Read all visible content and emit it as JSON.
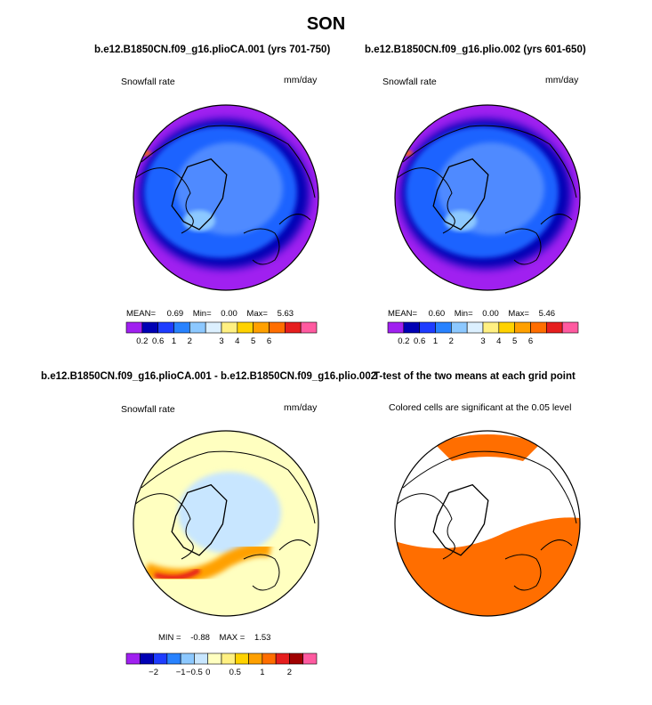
{
  "season": "SON",
  "colors": {
    "outline": "#000000",
    "coast": "#000000",
    "sig": "#ff6e00",
    "bg_low": "#a020f0",
    "ocean_dark": "#0000b4",
    "ocean_mid": "#1e64ff",
    "land": "#4f8aff",
    "snow_light": "#8cc8ff",
    "diff_pale": "#ffffc0",
    "diff_blue": "#c8e6ff"
  },
  "chart_data": [
    {
      "type": "heatmap",
      "projection": "north-polar-stereographic",
      "title": "b.e12.B1850CN.f09_g16.plioCA.001 (yrs 701-750)",
      "variable": "Snowfall rate",
      "units": "mm/day",
      "stats": {
        "mean_label": "MEAN=",
        "mean": "0.69",
        "min_label": "Min=",
        "min": "0.00",
        "max_label": "Max=",
        "max": "5.63"
      },
      "colorbar": {
        "colors": [
          "#a020f0",
          "#0000b4",
          "#1e3cff",
          "#2882ff",
          "#8cc8ff",
          "#dcf0ff",
          "#fff082",
          "#ffd200",
          "#ffa000",
          "#ff6e00",
          "#e61e1e",
          "#ff5aa0"
        ],
        "tick_labels": [
          "0.2",
          "0.6",
          "1",
          "2",
          "3",
          "4",
          "5",
          "6"
        ],
        "tick_boundaries": [
          1,
          2,
          3,
          4,
          6,
          7,
          8,
          9
        ]
      }
    },
    {
      "type": "heatmap",
      "projection": "north-polar-stereographic",
      "title": "b.e12.B1850CN.f09_g16.plio.002 (yrs 601-650)",
      "variable": "Snowfall rate",
      "units": "mm/day",
      "stats": {
        "mean_label": "MEAN=",
        "mean": "0.60",
        "min_label": "Min=",
        "min": "0.00",
        "max_label": "Max=",
        "max": "5.46"
      },
      "colorbar": {
        "colors": [
          "#a020f0",
          "#0000b4",
          "#1e3cff",
          "#2882ff",
          "#8cc8ff",
          "#dcf0ff",
          "#fff082",
          "#ffd200",
          "#ffa000",
          "#ff6e00",
          "#e61e1e",
          "#ff5aa0"
        ],
        "tick_labels": [
          "0.2",
          "0.6",
          "1",
          "2",
          "3",
          "4",
          "5",
          "6"
        ],
        "tick_boundaries": [
          1,
          2,
          3,
          4,
          6,
          7,
          8,
          9
        ]
      }
    },
    {
      "type": "heatmap",
      "projection": "north-polar-stereographic",
      "title": "b.e12.B1850CN.f09_g16.plioCA.001 - b.e12.B1850CN.f09_g16.plio.002",
      "variable": "Snowfall rate",
      "units": "mm/day",
      "stats": {
        "min_label": "MIN =",
        "min": "-0.88",
        "max_label": "MAX =",
        "max": "1.53"
      },
      "colorbar": {
        "colors": [
          "#a020f0",
          "#0000b4",
          "#1e3cff",
          "#2882ff",
          "#8cc8ff",
          "#c8e6ff",
          "#ffffc0",
          "#fff082",
          "#ffd200",
          "#ffa000",
          "#ff6e00",
          "#e61e1e",
          "#a00000",
          "#ff5aa0"
        ],
        "tick_labels": [
          "−2",
          "−1",
          "−0.5",
          "0",
          "0.5",
          "1",
          "2"
        ],
        "tick_boundaries": [
          2,
          4,
          5,
          6,
          8,
          10,
          12
        ]
      }
    },
    {
      "type": "heatmap",
      "projection": "north-polar-stereographic",
      "title": "T-test of the two means at each grid point",
      "subtitle": "Colored cells are significant at the 0.05 level",
      "significant_color": "#ff6e00"
    }
  ]
}
